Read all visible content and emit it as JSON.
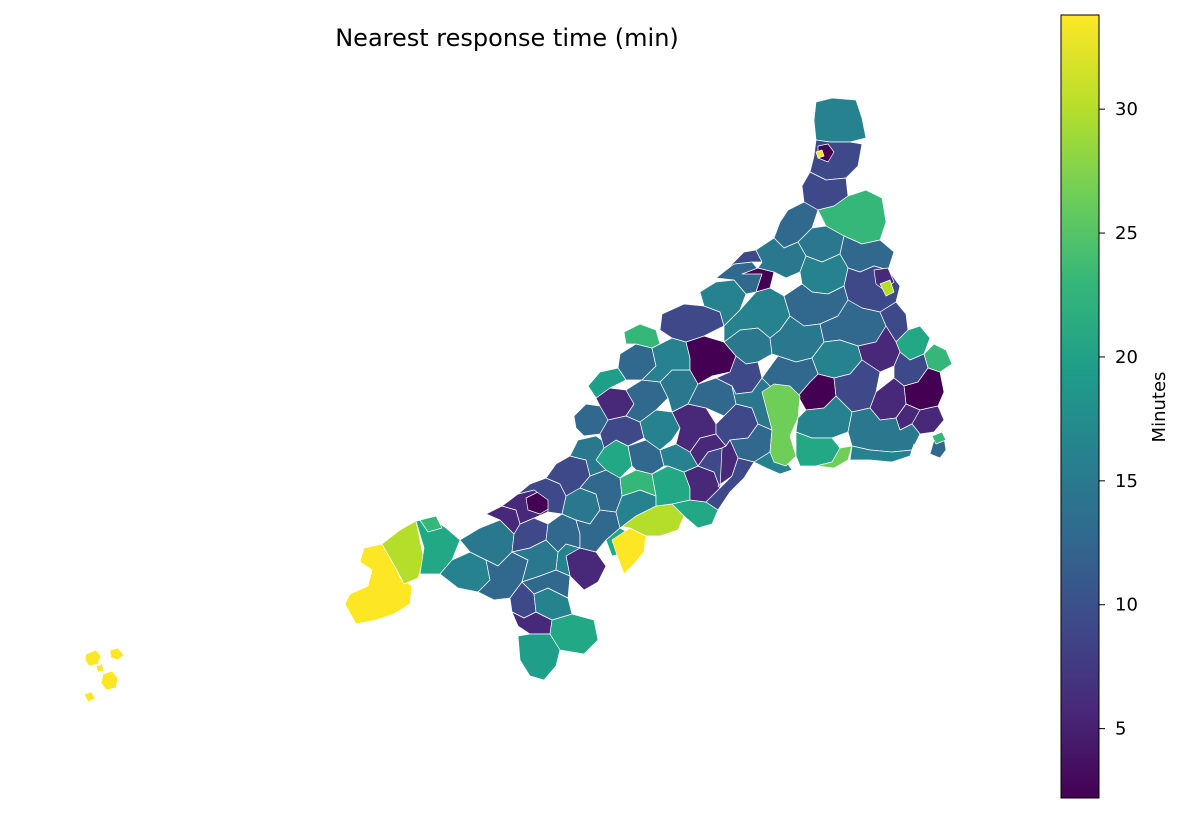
{
  "map": {
    "title": "Nearest response time (min)",
    "colorbar": {
      "label": "Minutes",
      "range": [
        2.2,
        33.8
      ],
      "ticks": [
        5,
        10,
        15,
        20,
        25,
        30
      ],
      "colormap": "viridis",
      "colors": [
        "#440154",
        "#482878",
        "#3e4989",
        "#31688e",
        "#26828e",
        "#1f9e89",
        "#35b779",
        "#6ece58",
        "#b5de2b",
        "#fde725"
      ]
    }
  }
}
